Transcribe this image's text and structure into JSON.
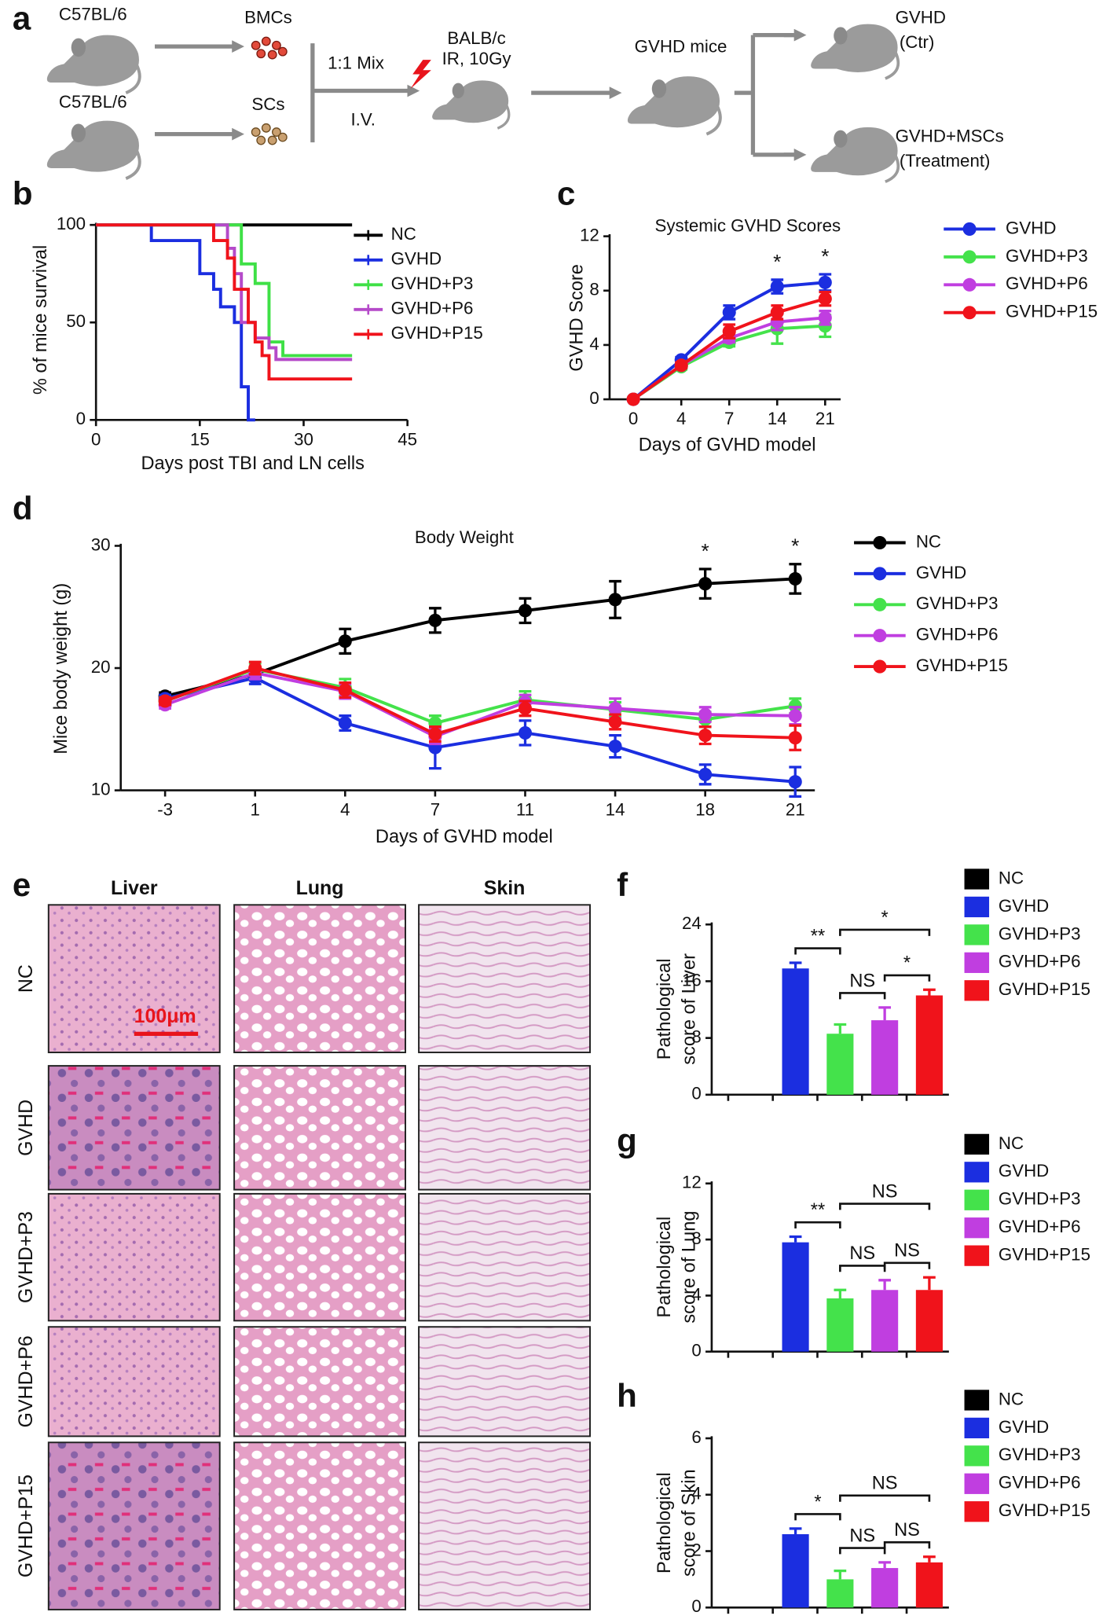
{
  "diagram": {
    "panel": "a",
    "donor_top": "C57BL/6",
    "donor_bottom": "C57BL/6",
    "cells_top": "BMCs",
    "cells_bottom": "SCs",
    "mix": "1:1 Mix",
    "route": "I.V.",
    "recipient": "BALB/c",
    "irradiation": "IR, 10Gy",
    "model": "GVHD mice",
    "group_control": [
      "GVHD",
      "(Ctr)"
    ],
    "group_treatment": [
      "GVHD+MSCs",
      "(Treatment)"
    ]
  },
  "histology": {
    "panel": "e",
    "columns": [
      "Liver",
      "Lung",
      "Skin"
    ],
    "rows": [
      "NC",
      "GVHD",
      "GVHD+P3",
      "GVHD+P6",
      "GVHD+P15"
    ],
    "scale_bar": "100μm"
  },
  "chart_data": [
    {
      "panel": "b",
      "type": "survival",
      "xlabel": "Days post TBI and LN cells",
      "ylabel": "% of mice survival",
      "xlim": [
        0,
        45
      ],
      "xticks": [
        0,
        15,
        30,
        45
      ],
      "ylim": [
        0,
        100
      ],
      "yticks": [
        0,
        50,
        100
      ],
      "series": [
        {
          "name": "NC",
          "color": "#000000",
          "x": [
            0,
            37
          ],
          "values": [
            100,
            100
          ]
        },
        {
          "name": "GVHD",
          "color": "#1b2ee0",
          "x": [
            0,
            8,
            15,
            17,
            18,
            20,
            21,
            22,
            23
          ],
          "values": [
            100,
            92,
            75,
            67,
            58,
            50,
            17,
            0,
            0
          ]
        },
        {
          "name": "GVHD+P3",
          "color": "#3fe046",
          "x": [
            0,
            21,
            23,
            25,
            27,
            37
          ],
          "values": [
            100,
            80,
            70,
            40,
            33,
            33
          ]
        },
        {
          "name": "GVHD+P6",
          "color": "#b54ac9",
          "x": [
            0,
            19,
            20,
            21,
            23,
            25,
            26,
            37
          ],
          "values": [
            100,
            88,
            75,
            50,
            42,
            37,
            31,
            31
          ]
        },
        {
          "name": "GVHD+P15",
          "color": "#f0131b",
          "x": [
            0,
            17,
            19,
            20,
            22,
            23,
            24,
            25,
            37
          ],
          "values": [
            100,
            92,
            83,
            67,
            50,
            40,
            33,
            21,
            21
          ]
        }
      ]
    },
    {
      "panel": "c",
      "type": "line",
      "title": "Systemic GVHD Scores",
      "xlabel": "Days of GVHD model",
      "ylabel": "GVHD Score",
      "categories": [
        "0",
        "4",
        "7",
        "14",
        "21"
      ],
      "ylim": [
        0,
        12
      ],
      "yticks": [
        0,
        4,
        8,
        12
      ],
      "series": [
        {
          "name": "GVHD",
          "color": "#1b2ee0",
          "values": [
            0,
            2.9,
            6.4,
            8.3,
            8.6
          ],
          "errors": [
            0,
            0.2,
            0.5,
            0.5,
            0.6
          ]
        },
        {
          "name": "GVHD+P3",
          "color": "#44e24b",
          "values": [
            0,
            2.4,
            4.2,
            5.2,
            5.4
          ],
          "errors": [
            0,
            0.2,
            0.3,
            1.1,
            0.8
          ]
        },
        {
          "name": "GVHD+P6",
          "color": "#c03ee0",
          "values": [
            0,
            2.5,
            4.5,
            5.7,
            6.0
          ],
          "errors": [
            0,
            0.2,
            0.3,
            0.6,
            0.5
          ]
        },
        {
          "name": "GVHD+P15",
          "color": "#f0131b",
          "values": [
            0,
            2.5,
            5.0,
            6.4,
            7.4
          ],
          "errors": [
            0,
            0.2,
            0.5,
            0.5,
            0.5
          ]
        }
      ],
      "annotations": [
        {
          "text": "*",
          "x": "14"
        },
        {
          "text": "*",
          "x": "21"
        }
      ]
    },
    {
      "panel": "d",
      "type": "line",
      "title": "Body Weight",
      "xlabel": "Days of GVHD model",
      "ylabel": "Mice  body weight (g)",
      "categories": [
        "-3",
        "1",
        "4",
        "7",
        "11",
        "14",
        "18",
        "21"
      ],
      "ylim": [
        10,
        30
      ],
      "yticks": [
        10,
        20,
        30
      ],
      "series": [
        {
          "name": "NC",
          "color": "#000000",
          "values": [
            17.7,
            19.5,
            22.2,
            23.9,
            24.7,
            25.6,
            26.9,
            27.3
          ],
          "errors": [
            0.3,
            0.5,
            1.0,
            1.0,
            1.0,
            1.5,
            1.2,
            1.2
          ]
        },
        {
          "name": "GVHD",
          "color": "#1b2ee0",
          "values": [
            17.5,
            19.2,
            15.5,
            13.5,
            14.7,
            13.6,
            11.3,
            10.7
          ],
          "errors": [
            0.3,
            0.5,
            0.6,
            1.7,
            1.0,
            0.9,
            0.8,
            1.2
          ]
        },
        {
          "name": "GVHD+P3",
          "color": "#44e24b",
          "values": [
            17.3,
            19.9,
            18.4,
            15.5,
            17.4,
            16.6,
            15.8,
            16.9
          ],
          "errors": [
            0.3,
            0.5,
            0.7,
            0.6,
            0.7,
            0.6,
            0.6,
            0.6
          ]
        },
        {
          "name": "GVHD+P6",
          "color": "#c03ee0",
          "values": [
            17.0,
            19.6,
            18.1,
            14.4,
            17.2,
            16.7,
            16.2,
            16.1
          ],
          "errors": [
            0.3,
            0.5,
            0.6,
            0.6,
            0.6,
            0.8,
            0.6,
            0.7
          ]
        },
        {
          "name": "GVHD+P15",
          "color": "#f0131b",
          "values": [
            17.3,
            20.0,
            18.2,
            14.6,
            16.7,
            15.6,
            14.5,
            14.3
          ],
          "errors": [
            0.3,
            0.5,
            0.6,
            0.6,
            0.6,
            0.6,
            0.7,
            1.0
          ]
        }
      ],
      "annotations": [
        {
          "text": "*",
          "x": "18"
        },
        {
          "text": "*",
          "x": "21"
        }
      ]
    },
    {
      "panel": "f",
      "type": "bar",
      "ylabel": [
        "Pathological",
        "score of Liver"
      ],
      "categories": [
        "NC",
        "GVHD",
        "GVHD+P3",
        "GVHD+P6",
        "GVHD+P15"
      ],
      "colors": [
        "#000000",
        "#1b2ee0",
        "#44e24b",
        "#c03ee0",
        "#f0131b"
      ],
      "values": [
        0,
        17.8,
        8.6,
        10.5,
        14.0
      ],
      "errors": [
        0,
        0.8,
        1.3,
        1.8,
        0.8
      ],
      "ylim": [
        0,
        24
      ],
      "yticks": [
        0,
        8,
        16,
        24
      ],
      "annotations": [
        {
          "text": "**",
          "from": "GVHD",
          "to": "GVHD+P3"
        },
        {
          "text": "NS",
          "from": "GVHD+P3",
          "to": "GVHD+P6"
        },
        {
          "text": "*",
          "from": "GVHD+P6",
          "to": "GVHD+P15"
        },
        {
          "text": "*",
          "from": "GVHD+P3",
          "to": "GVHD+P15"
        }
      ]
    },
    {
      "panel": "g",
      "type": "bar",
      "ylabel": [
        "Pathological",
        "score of Lung"
      ],
      "categories": [
        "NC",
        "GVHD",
        "GVHD+P3",
        "GVHD+P6",
        "GVHD+P15"
      ],
      "colors": [
        "#000000",
        "#1b2ee0",
        "#44e24b",
        "#c03ee0",
        "#f0131b"
      ],
      "values": [
        0,
        7.8,
        3.8,
        4.4,
        4.4
      ],
      "errors": [
        0,
        0.4,
        0.6,
        0.7,
        0.9
      ],
      "ylim": [
        0,
        12
      ],
      "yticks": [
        0,
        4,
        8,
        12
      ],
      "annotations": [
        {
          "text": "**",
          "from": "GVHD",
          "to": "GVHD+P3"
        },
        {
          "text": "NS",
          "from": "GVHD+P3",
          "to": "GVHD+P15"
        },
        {
          "text": "NS",
          "from": "GVHD+P3",
          "to": "GVHD+P6"
        },
        {
          "text": "NS",
          "from": "GVHD+P6",
          "to": "GVHD+P15"
        }
      ]
    },
    {
      "panel": "h",
      "type": "bar",
      "ylabel": [
        "Pathological",
        "score of Skin"
      ],
      "categories": [
        "NC",
        "GVHD",
        "GVHD+P3",
        "GVHD+P6",
        "GVHD+P15"
      ],
      "colors": [
        "#000000",
        "#1b2ee0",
        "#44e24b",
        "#c03ee0",
        "#f0131b"
      ],
      "values": [
        0,
        2.6,
        1.0,
        1.4,
        1.6
      ],
      "errors": [
        0,
        0.2,
        0.3,
        0.2,
        0.2
      ],
      "ylim": [
        0,
        6
      ],
      "yticks": [
        0,
        2,
        4,
        6
      ],
      "annotations": [
        {
          "text": "*",
          "from": "GVHD",
          "to": "GVHD+P3"
        },
        {
          "text": "NS",
          "from": "GVHD+P3",
          "to": "GVHD+P15"
        },
        {
          "text": "NS",
          "from": "GVHD+P3",
          "to": "GVHD+P6"
        },
        {
          "text": "NS",
          "from": "GVHD+P6",
          "to": "GVHD+P15"
        }
      ]
    }
  ]
}
